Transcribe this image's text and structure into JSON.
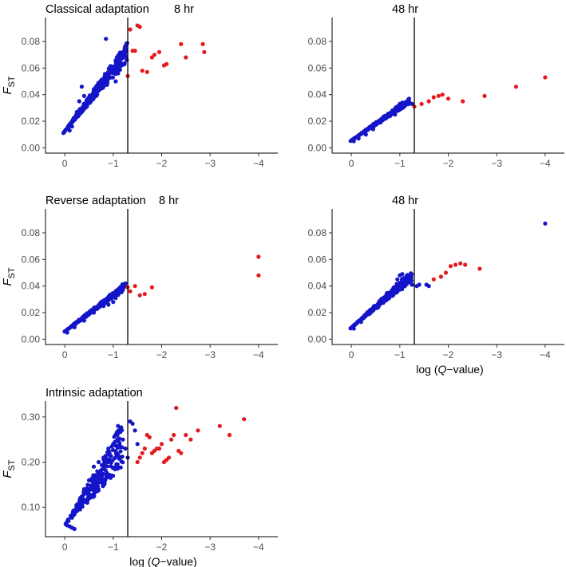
{
  "colors": {
    "significant": "#e41a1c",
    "nonsignificant": "#1414c8",
    "axis": "#000000",
    "threshold_line": "#000000"
  },
  "legend": "none",
  "grid": false,
  "chart_data": [
    {
      "type": "scatter",
      "title": "Classical adaptation",
      "subtitle": "8 hr",
      "ylabel": "F",
      "ylabel_sub": "ST",
      "xlabel": "",
      "xlim": [
        0.2,
        -4.2
      ],
      "ylim": [
        -0.004,
        0.098
      ],
      "xticks": [
        0,
        -1,
        -2,
        -3,
        -4
      ],
      "xtick_labels": [
        "0",
        "−1",
        "−2",
        "−3",
        "−4"
      ],
      "yticks": [
        0.0,
        0.02,
        0.04,
        0.06,
        0.08
      ],
      "ytick_labels": [
        "0.00",
        "0.02",
        "0.04",
        "0.06",
        "0.08"
      ],
      "threshold_x": -1.3,
      "trend": {
        "x0": 0.03,
        "y0": 0.011,
        "x1": -1.29,
        "slope": 0.042,
        "spread": 0.015
      },
      "series": [
        {
          "color": "nonsignificant",
          "points": [
            [
              -0.1,
              0.013
            ],
            [
              -0.15,
              0.016
            ],
            [
              -0.2,
              0.021
            ],
            [
              -0.25,
              0.027
            ],
            [
              -0.3,
              0.035
            ],
            [
              -0.35,
              0.046
            ],
            [
              -0.4,
              0.039
            ],
            [
              -0.5,
              0.038
            ],
            [
              -0.6,
              0.044
            ],
            [
              -0.7,
              0.043
            ],
            [
              -0.8,
              0.046
            ],
            [
              -0.85,
              0.082
            ],
            [
              -0.9,
              0.052
            ],
            [
              -1.0,
              0.058
            ],
            [
              -1.05,
              0.05
            ],
            [
              -1.1,
              0.056
            ],
            [
              -1.15,
              0.062
            ],
            [
              -1.2,
              0.069
            ],
            [
              -1.25,
              0.073
            ],
            [
              -1.28,
              0.066
            ]
          ]
        },
        {
          "color": "significant",
          "points": [
            [
              -1.3,
              0.054
            ],
            [
              -1.35,
              0.089
            ],
            [
              -1.4,
              0.073
            ],
            [
              -1.45,
              0.073
            ],
            [
              -1.5,
              0.092
            ],
            [
              -1.55,
              0.091
            ],
            [
              -1.6,
              0.058
            ],
            [
              -1.7,
              0.057
            ],
            [
              -1.8,
              0.068
            ],
            [
              -1.85,
              0.07
            ],
            [
              -1.95,
              0.072
            ],
            [
              -2.05,
              0.062
            ],
            [
              -2.1,
              0.063
            ],
            [
              -2.4,
              0.078
            ],
            [
              -2.5,
              0.068
            ],
            [
              -2.85,
              0.078
            ],
            [
              -2.88,
              0.072
            ]
          ]
        }
      ]
    },
    {
      "type": "scatter",
      "title": "",
      "subtitle": "48 hr",
      "ylabel": "",
      "xlabel": "",
      "xlim": [
        0.2,
        -4.2
      ],
      "ylim": [
        -0.004,
        0.098
      ],
      "xticks": [
        0,
        -1,
        -2,
        -3,
        -4
      ],
      "xtick_labels": [
        "0",
        "−1",
        "−2",
        "−3",
        "−4"
      ],
      "yticks": [
        0.0,
        0.02,
        0.04,
        0.06,
        0.08
      ],
      "ytick_labels": [
        "0.00",
        "0.02",
        "0.04",
        "0.06",
        "0.08"
      ],
      "threshold_x": -1.3,
      "trend": {
        "x0": 0.02,
        "y0": 0.005,
        "x1": -1.2,
        "slope": 0.024,
        "spread": 0.004
      },
      "series": [
        {
          "color": "nonsignificant",
          "points": [
            [
              -0.05,
              0.005
            ],
            [
              -0.15,
              0.007
            ],
            [
              -0.3,
              0.01
            ],
            [
              -0.45,
              0.014
            ],
            [
              -0.6,
              0.019
            ],
            [
              -0.7,
              0.022
            ],
            [
              -0.8,
              0.024
            ],
            [
              -0.9,
              0.025
            ],
            [
              -0.95,
              0.028
            ],
            [
              -1.0,
              0.033
            ],
            [
              -1.05,
              0.034
            ],
            [
              -1.15,
              0.034
            ],
            [
              -1.25,
              0.033
            ]
          ]
        },
        {
          "color": "significant",
          "points": [
            [
              -1.3,
              0.031
            ],
            [
              -1.45,
              0.033
            ],
            [
              -1.6,
              0.035
            ],
            [
              -1.7,
              0.038
            ],
            [
              -1.8,
              0.039
            ],
            [
              -1.88,
              0.04
            ],
            [
              -2.0,
              0.037
            ],
            [
              -2.3,
              0.035
            ],
            [
              -2.75,
              0.039
            ],
            [
              -3.4,
              0.046
            ],
            [
              -4.0,
              0.053
            ]
          ]
        }
      ]
    },
    {
      "type": "scatter",
      "title": "Reverse adaptation",
      "subtitle": "8 hr",
      "ylabel": "F",
      "ylabel_sub": "ST",
      "xlabel": "",
      "xlim": [
        0.2,
        -4.2
      ],
      "ylim": [
        -0.004,
        0.098
      ],
      "xticks": [
        0,
        -1,
        -2,
        -3,
        -4
      ],
      "xtick_labels": [
        "0",
        "−1",
        "−2",
        "−3",
        "−4"
      ],
      "yticks": [
        0.0,
        0.02,
        0.04,
        0.06,
        0.08
      ],
      "ytick_labels": [
        "0.00",
        "0.02",
        "0.04",
        "0.06",
        "0.08"
      ],
      "threshold_x": -1.3,
      "trend": {
        "x0": 0.03,
        "y0": 0.005,
        "x1": -1.25,
        "slope": 0.026,
        "spread": 0.005
      },
      "series": [
        {
          "color": "nonsignificant",
          "points": [
            [
              -0.05,
              0.005
            ],
            [
              -0.2,
              0.009
            ],
            [
              -0.4,
              0.014
            ],
            [
              -0.6,
              0.02
            ],
            [
              -0.7,
              0.024
            ],
            [
              -0.8,
              0.025
            ],
            [
              -0.9,
              0.026
            ],
            [
              -1.0,
              0.028
            ],
            [
              -1.05,
              0.031
            ],
            [
              -1.1,
              0.035
            ],
            [
              -1.15,
              0.037
            ],
            [
              -1.2,
              0.04
            ],
            [
              -1.25,
              0.042
            ]
          ]
        },
        {
          "color": "significant",
          "points": [
            [
              -1.3,
              0.039
            ],
            [
              -1.35,
              0.036
            ],
            [
              -1.45,
              0.04
            ],
            [
              -1.55,
              0.033
            ],
            [
              -1.65,
              0.034
            ],
            [
              -1.8,
              0.039
            ],
            [
              -4.0,
              0.062
            ],
            [
              -4.0,
              0.048
            ]
          ]
        }
      ]
    },
    {
      "type": "scatter",
      "title": "",
      "subtitle": "48 hr",
      "ylabel": "",
      "xlabel": "log (Q−value)",
      "xlim": [
        0.2,
        -4.2
      ],
      "ylim": [
        -0.004,
        0.098
      ],
      "xticks": [
        0,
        -1,
        -2,
        -3,
        -4
      ],
      "xtick_labels": [
        "0",
        "−1",
        "−2",
        "−3",
        "−4"
      ],
      "yticks": [
        0.0,
        0.02,
        0.04,
        0.06,
        0.08
      ],
      "ytick_labels": [
        "0.00",
        "0.02",
        "0.04",
        "0.06",
        "0.08"
      ],
      "threshold_x": -1.3,
      "trend": {
        "x0": 0.02,
        "y0": 0.008,
        "x1": -1.25,
        "slope": 0.029,
        "spread": 0.008
      },
      "series": [
        {
          "color": "nonsignificant",
          "points": [
            [
              -0.05,
              0.008
            ],
            [
              -0.2,
              0.013
            ],
            [
              -0.4,
              0.02
            ],
            [
              -0.6,
              0.028
            ],
            [
              -0.8,
              0.034
            ],
            [
              -0.9,
              0.037
            ],
            [
              -0.95,
              0.045
            ],
            [
              -1.0,
              0.048
            ],
            [
              -1.05,
              0.049
            ],
            [
              -1.1,
              0.04
            ],
            [
              -1.2,
              0.044
            ],
            [
              -1.25,
              0.041
            ],
            [
              -1.35,
              0.04
            ],
            [
              -1.4,
              0.041
            ],
            [
              -1.55,
              0.041
            ],
            [
              -1.6,
              0.04
            ],
            [
              -4.0,
              0.087
            ]
          ]
        },
        {
          "color": "significant",
          "points": [
            [
              -1.7,
              0.045
            ],
            [
              -1.85,
              0.047
            ],
            [
              -1.95,
              0.05
            ],
            [
              -2.05,
              0.055
            ],
            [
              -2.15,
              0.056
            ],
            [
              -2.25,
              0.057
            ],
            [
              -2.35,
              0.056
            ],
            [
              -2.65,
              0.053
            ]
          ]
        }
      ]
    },
    {
      "type": "scatter",
      "title": "Intrinsic adaptation",
      "subtitle": "",
      "ylabel": "F",
      "ylabel_sub": "ST",
      "xlabel": "log (Q−value)",
      "xlim": [
        0.2,
        -4.2
      ],
      "ylim": [
        0.035,
        0.335
      ],
      "xticks": [
        0,
        -1,
        -2,
        -3,
        -4
      ],
      "xtick_labels": [
        "0",
        "−1",
        "−2",
        "−3",
        "−4"
      ],
      "yticks": [
        0.1,
        0.2,
        0.3
      ],
      "ytick_labels": [
        "0.10",
        "0.20",
        "0.30"
      ],
      "threshold_x": -1.3,
      "trend": {
        "x0": 0.0,
        "y0": 0.06,
        "x1": -1.2,
        "slope": 0.11,
        "spread": 0.1
      },
      "series": [
        {
          "color": "nonsignificant",
          "points": [
            [
              -0.05,
              0.06
            ],
            [
              -0.1,
              0.058
            ],
            [
              -0.15,
              0.055
            ],
            [
              -0.2,
              0.052
            ],
            [
              -0.3,
              0.1
            ],
            [
              -0.4,
              0.14
            ],
            [
              -0.5,
              0.16
            ],
            [
              -0.6,
              0.19
            ],
            [
              -0.7,
              0.2
            ],
            [
              -0.8,
              0.21
            ],
            [
              -0.9,
              0.23
            ],
            [
              -1.0,
              0.24
            ],
            [
              -1.05,
              0.26
            ],
            [
              -1.1,
              0.28
            ],
            [
              -1.15,
              0.27
            ],
            [
              -1.2,
              0.25
            ],
            [
              -1.25,
              0.23
            ],
            [
              -1.3,
              0.21
            ],
            [
              -1.35,
              0.29
            ],
            [
              -1.4,
              0.285
            ],
            [
              -1.45,
              0.27
            ],
            [
              -1.5,
              0.24
            ]
          ]
        },
        {
          "color": "significant",
          "points": [
            [
              -1.5,
              0.2
            ],
            [
              -1.55,
              0.21
            ],
            [
              -1.6,
              0.22
            ],
            [
              -1.65,
              0.23
            ],
            [
              -1.7,
              0.26
            ],
            [
              -1.75,
              0.255
            ],
            [
              -1.8,
              0.22
            ],
            [
              -1.85,
              0.225
            ],
            [
              -1.9,
              0.23
            ],
            [
              -1.95,
              0.23
            ],
            [
              -2.0,
              0.24
            ],
            [
              -2.05,
              0.2
            ],
            [
              -2.1,
              0.205
            ],
            [
              -2.15,
              0.21
            ],
            [
              -2.2,
              0.25
            ],
            [
              -2.25,
              0.26
            ],
            [
              -2.3,
              0.32
            ],
            [
              -2.35,
              0.225
            ],
            [
              -2.4,
              0.22
            ],
            [
              -2.5,
              0.26
            ],
            [
              -2.6,
              0.25
            ],
            [
              -2.75,
              0.27
            ],
            [
              -3.2,
              0.28
            ],
            [
              -3.4,
              0.26
            ],
            [
              -3.7,
              0.295
            ]
          ]
        }
      ]
    }
  ]
}
